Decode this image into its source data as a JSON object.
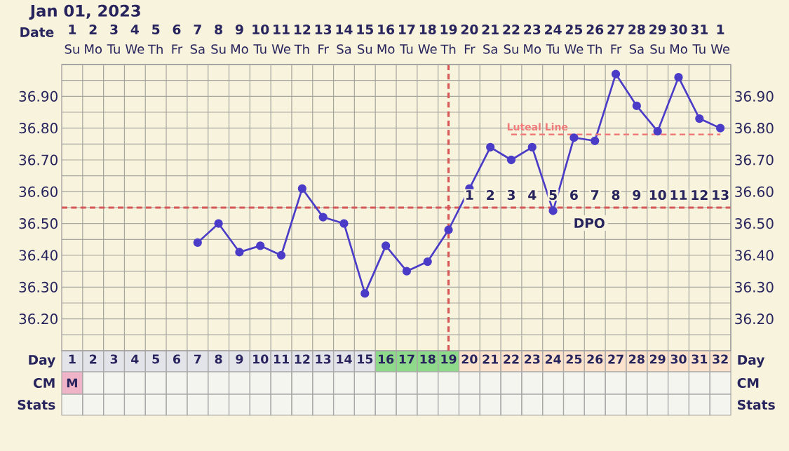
{
  "chart_data": {
    "type": "line",
    "title": "Jan 01, 2023",
    "xlabel": "Day",
    "categories": [
      "1",
      "2",
      "3",
      "4",
      "5",
      "6",
      "7",
      "8",
      "9",
      "10",
      "11",
      "12",
      "13",
      "14",
      "15",
      "16",
      "17",
      "18",
      "19",
      "20",
      "21",
      "22",
      "23",
      "24",
      "25",
      "26",
      "27",
      "28",
      "29",
      "30",
      "31",
      "32"
    ],
    "series": [
      {
        "color": "#4b3cc8",
        "marker": "circle",
        "values": [
          null,
          null,
          null,
          null,
          null,
          null,
          36.44,
          36.5,
          36.41,
          36.43,
          36.4,
          36.61,
          36.52,
          36.5,
          36.28,
          36.43,
          36.35,
          36.38,
          36.48,
          36.61,
          36.74,
          36.7,
          36.74,
          36.54,
          36.77,
          36.76,
          36.97,
          36.87,
          36.79,
          36.96,
          36.83,
          36.8
        ]
      },
      {
        "name": "Luteal Line",
        "color": "#f07a7a",
        "marker": "none",
        "line_style": "dashed",
        "values": [
          null,
          null,
          null,
          null,
          null,
          null,
          null,
          null,
          null,
          null,
          null,
          null,
          null,
          null,
          null,
          null,
          null,
          null,
          null,
          null,
          null,
          36.78,
          36.78,
          36.78,
          36.78,
          36.78,
          36.78,
          36.78,
          36.78,
          36.78,
          36.78,
          36.78
        ]
      }
    ],
    "ylim": [
      36.1,
      37.0
    ],
    "yticks": [
      {
        "value": 36.2,
        "label": "36.20"
      },
      {
        "value": 36.3,
        "label": "36.30"
      },
      {
        "value": 36.4,
        "label": "36.40"
      },
      {
        "value": 36.5,
        "label": "36.50"
      },
      {
        "value": 36.6,
        "label": "36.60"
      },
      {
        "value": 36.7,
        "label": "36.70"
      },
      {
        "value": 36.8,
        "label": "36.80"
      },
      {
        "value": 36.9,
        "label": "36.90"
      }
    ],
    "y2lim": [
      36.1,
      37.0
    ],
    "y2ticks": [
      {
        "value": 36.2,
        "label": "36.20"
      },
      {
        "value": 36.3,
        "label": "36.30"
      },
      {
        "value": 36.4,
        "label": "36.40"
      },
      {
        "value": 36.5,
        "label": "36.50"
      },
      {
        "value": 36.6,
        "label": "36.60"
      },
      {
        "value": 36.7,
        "label": "36.70"
      },
      {
        "value": 36.8,
        "label": "36.80"
      },
      {
        "value": 36.9,
        "label": "36.90"
      }
    ],
    "grid": true,
    "ref_lines": [
      {
        "axis": "y",
        "value": 36.55,
        "color": "#d65858",
        "line_style": "dashed"
      },
      {
        "axis": "x",
        "value": "19",
        "color": "#d65858",
        "line_style": "dashed"
      }
    ],
    "annotations": [
      "Date",
      "1",
      "2",
      "3",
      "4",
      "5",
      "6",
      "7",
      "8",
      "9",
      "10",
      "11",
      "12",
      "13",
      "14",
      "15",
      "16",
      "17",
      "18",
      "19",
      "20",
      "21",
      "22",
      "23",
      "24",
      "25",
      "26",
      "27",
      "28",
      "29",
      "30",
      "31",
      "1",
      "Su",
      "Mo",
      "Tu",
      "We",
      "Th",
      "Fr",
      "Sa",
      "Su",
      "Mo",
      "Tu",
      "We",
      "Th",
      "Fr",
      "Sa",
      "Su",
      "Mo",
      "Tu",
      "We",
      "Th",
      "Fr",
      "Sa",
      "Su",
      "Mo",
      "Tu",
      "We",
      "Th",
      "Fr",
      "Sa",
      "Su",
      "Mo",
      "Tu",
      "We",
      "CM",
      "Stats",
      "M",
      "1",
      "2",
      "3",
      "4",
      "5",
      "6",
      "7",
      "8",
      "9",
      "10",
      "11",
      "12",
      "13",
      "DPO"
    ]
  }
}
